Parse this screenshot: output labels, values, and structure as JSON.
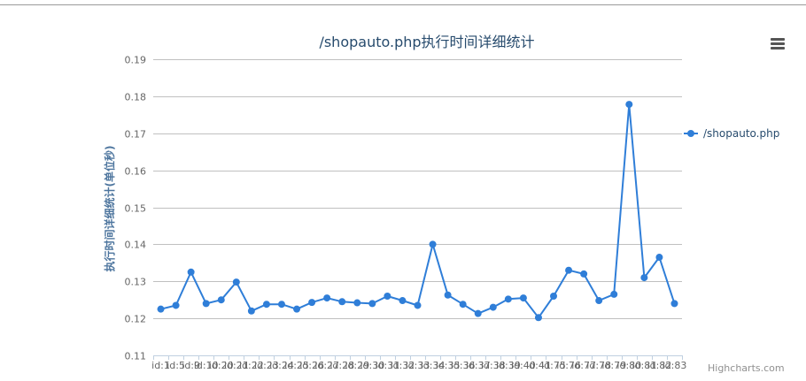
{
  "chart_data": {
    "type": "line",
    "title": "/shopauto.php执行时间详细统计",
    "xlabel": "",
    "ylabel": "执行时间详细统计(单位秒)",
    "ylim": [
      0.11,
      0.19
    ],
    "yticks": [
      "0.19",
      "0.18",
      "0.17",
      "0.16",
      "0.15",
      "0.14",
      "0.13",
      "0.12",
      "0.11"
    ],
    "categories": [
      "id:1",
      "id:5",
      "id:9",
      "id:10",
      "id:20",
      "id:21",
      "id:22",
      "id:23",
      "id:24",
      "id:25",
      "id:26",
      "id:27",
      "id:28",
      "id:29",
      "id:30",
      "id:31",
      "id:32",
      "id:33",
      "id:34",
      "id:35",
      "id:36",
      "id:37",
      "id:38",
      "id:39",
      "id:40",
      "id:41",
      "id:75",
      "id:76",
      "id:77",
      "id:78",
      "id:79",
      "id:80",
      "id:81",
      "id:82",
      "id:83"
    ],
    "grid": true,
    "legend_position": "right",
    "series": [
      {
        "name": "/shopauto.php",
        "color": "#2f7ed8",
        "values": [
          0.1225,
          0.1235,
          0.1325,
          0.124,
          0.125,
          0.1298,
          0.122,
          0.1238,
          0.1238,
          0.1225,
          0.1243,
          0.1255,
          0.1245,
          0.1242,
          0.124,
          0.126,
          0.1248,
          0.1235,
          0.14,
          0.1263,
          0.1238,
          0.1213,
          0.123,
          0.1252,
          0.1255,
          0.1202,
          0.126,
          0.133,
          0.132,
          0.1248,
          0.1265,
          0.1778,
          0.131,
          0.1365,
          0.124
        ]
      }
    ]
  },
  "ui": {
    "menu_icon": "hamburger-menu-icon",
    "credits": "Highcharts.com"
  }
}
